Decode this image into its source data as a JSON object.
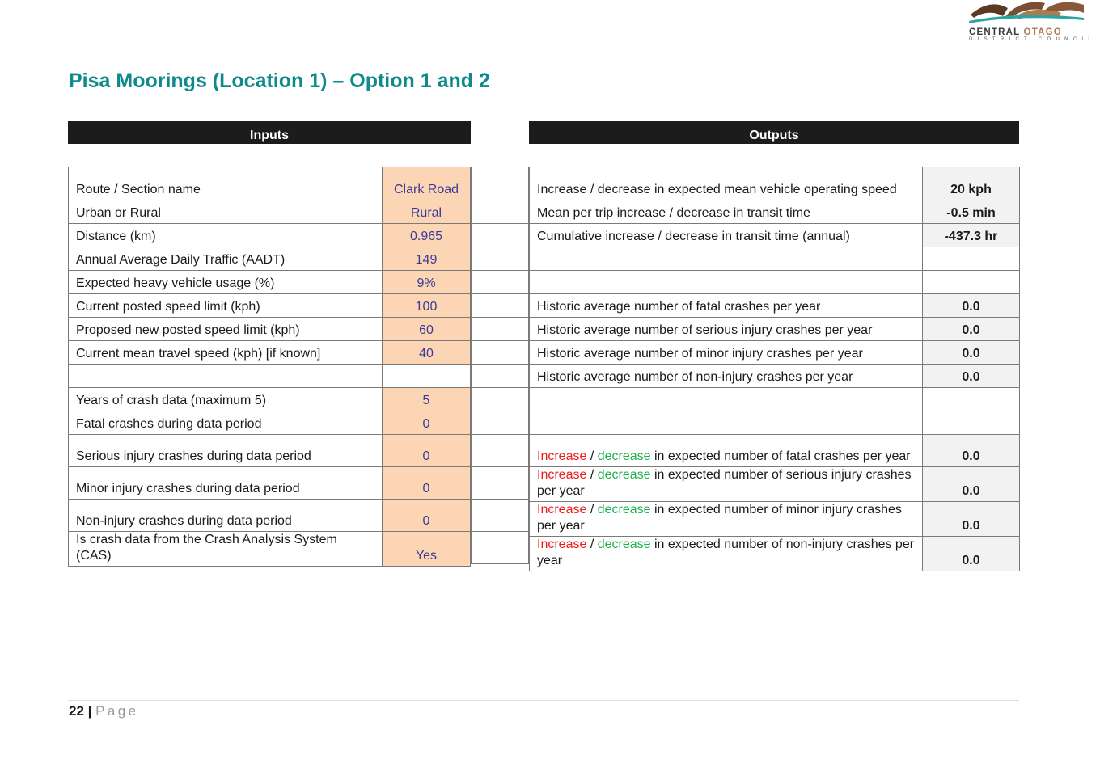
{
  "logo": {
    "word1": "CENTRAL",
    "word2": "OTAGO",
    "subtitle": "DISTRICT COUNCIL",
    "colors": [
      "#5a3a24",
      "#b07a4e",
      "#2aa5a4"
    ]
  },
  "title": "Pisa Moorings (Location 1) – Option 1 and 2",
  "inputs": {
    "header": "Inputs",
    "rows": [
      {
        "label": "Route / Section name",
        "value": "Clark Road"
      },
      {
        "label": "Urban or Rural",
        "value": "Rural"
      },
      {
        "label": "Distance (km)",
        "value": "0.965"
      },
      {
        "label": "Annual Average Daily Traffic (AADT)",
        "value": "149"
      },
      {
        "label": "Expected heavy vehicle usage (%)",
        "value": "9%"
      },
      {
        "label": "Current posted speed limit (kph)",
        "value": "100"
      },
      {
        "label": "Proposed new posted speed limit (kph)",
        "value": "60"
      },
      {
        "label": "Current mean travel speed (kph) [if known]",
        "value": "40"
      },
      {
        "label": "",
        "value": ""
      },
      {
        "label": "Years of crash data (maximum 5)",
        "value": "5"
      },
      {
        "label": "Fatal crashes during data period",
        "value": "0"
      },
      {
        "label": "Serious injury crashes during data period",
        "value": "0"
      },
      {
        "label": "Minor injury crashes during data period",
        "value": "0"
      },
      {
        "label": "Non-injury crashes during data period",
        "value": "0"
      },
      {
        "label": "Is crash data from the Crash Analysis System (CAS)",
        "value": "Yes"
      }
    ]
  },
  "outputs": {
    "header": "Outputs",
    "increase": "Increase",
    "slash": " / ",
    "decrease": "decrease",
    "rows": [
      {
        "label": "Increase / decrease in expected mean vehicle operating speed",
        "value": "20 kph"
      },
      {
        "label": "Mean per trip increase / decrease in transit time",
        "value": "-0.5 min"
      },
      {
        "label": "Cumulative increase / decrease in transit time (annual)",
        "value": "-437.3 hr"
      },
      {
        "label": "",
        "value": ""
      },
      {
        "label": "",
        "value": ""
      },
      {
        "label": "Historic average number of fatal crashes per year",
        "value": "0.0"
      },
      {
        "label": "Historic average number of serious injury crashes per year",
        "value": "0.0"
      },
      {
        "label": "Historic average number of minor injury crashes per year",
        "value": "0.0"
      },
      {
        "label": "Historic average number of non-injury crashes per year",
        "value": "0.0"
      },
      {
        "label": "",
        "value": ""
      },
      {
        "label": "",
        "value": ""
      },
      {
        "label": " in expected number of fatal crashes per year",
        "value": "0.0"
      },
      {
        "label": " in expected number of serious injury crashes per year",
        "value": "0.0"
      },
      {
        "label": " in expected number of minor injury crashes per year",
        "value": "0.0"
      },
      {
        "label": " in expected number of non-injury crashes per year",
        "value": "0.0"
      }
    ]
  },
  "footer": {
    "page_number": "22",
    "separator": " | ",
    "page_word": "Page"
  }
}
